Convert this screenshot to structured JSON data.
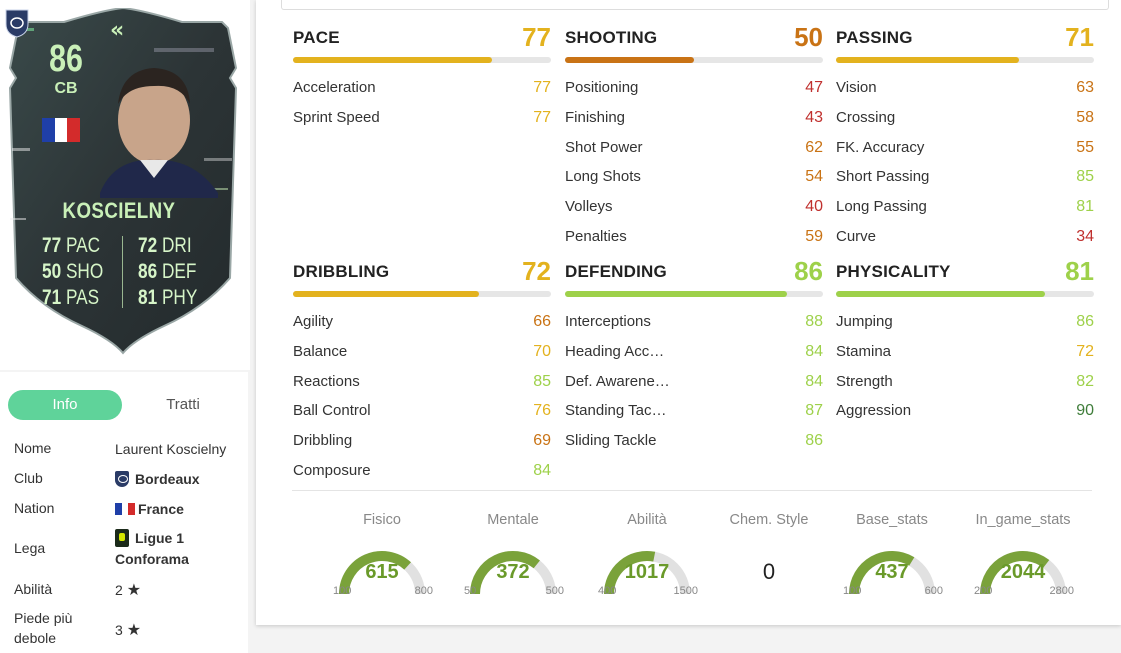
{
  "colors": {
    "gold": "#e3b21e",
    "gold_dark": "#c9851a",
    "orange": "#c97315",
    "red": "#c0302e",
    "light_green": "#9ed14a",
    "green": "#7bbf2e",
    "dark_green": "#3f7d3a",
    "tab_active": "#5fd39a",
    "gauge_green": "#7aa23a"
  },
  "card": {
    "rating": "86",
    "position": "CB",
    "name": "KOSCIELNY",
    "flag_icon": "france-flag-icon",
    "club_icon": "bordeaux-crest-icon",
    "stats_left": [
      {
        "value": "77",
        "label": "PAC"
      },
      {
        "value": "50",
        "label": "SHO"
      },
      {
        "value": "71",
        "label": "PAS"
      }
    ],
    "stats_right": [
      {
        "value": "72",
        "label": "DRI"
      },
      {
        "value": "86",
        "label": "DEF"
      },
      {
        "value": "81",
        "label": "PHY"
      }
    ]
  },
  "info": {
    "tabs": [
      {
        "label": "Info",
        "active": true
      },
      {
        "label": "Tratti",
        "active": false
      }
    ],
    "rows": [
      {
        "key": "Nome",
        "value": "Laurent Koscielny"
      },
      {
        "key": "Club",
        "value": "Bordeaux",
        "icon": "bordeaux-crest-icon"
      },
      {
        "key": "Nation",
        "value": "France",
        "icon": "france-flag-icon"
      },
      {
        "key": "Lega",
        "value": "Ligue 1 Conforama",
        "icon": "ligue1-icon"
      },
      {
        "key": "Abilità",
        "value": "2",
        "icon": "star-icon"
      },
      {
        "key": "Piede più debole",
        "value": "3",
        "icon": "star-icon"
      }
    ]
  },
  "groups": [
    {
      "title": "PACE",
      "total": 77,
      "attrs": [
        {
          "name": "Acceleration",
          "value": 77
        },
        {
          "name": "Sprint Speed",
          "value": 77
        }
      ]
    },
    {
      "title": "SHOOTING",
      "total": 50,
      "attrs": [
        {
          "name": "Positioning",
          "value": 47
        },
        {
          "name": "Finishing",
          "value": 43
        },
        {
          "name": "Shot Power",
          "value": 62
        },
        {
          "name": "Long Shots",
          "value": 54
        },
        {
          "name": "Volleys",
          "value": 40
        },
        {
          "name": "Penalties",
          "value": 59
        }
      ]
    },
    {
      "title": "PASSING",
      "total": 71,
      "attrs": [
        {
          "name": "Vision",
          "value": 63
        },
        {
          "name": "Crossing",
          "value": 58
        },
        {
          "name": "FK. Accuracy",
          "value": 55
        },
        {
          "name": "Short Passing",
          "value": 85
        },
        {
          "name": "Long Passing",
          "value": 81
        },
        {
          "name": "Curve",
          "value": 34
        }
      ]
    },
    {
      "title": "DRIBBLING",
      "total": 72,
      "attrs": [
        {
          "name": "Agility",
          "value": 66
        },
        {
          "name": "Balance",
          "value": 70
        },
        {
          "name": "Reactions",
          "value": 85
        },
        {
          "name": "Ball Control",
          "value": 76
        },
        {
          "name": "Dribbling",
          "value": 69
        },
        {
          "name": "Composure",
          "value": 84
        }
      ]
    },
    {
      "title": "DEFENDING",
      "total": 86,
      "attrs": [
        {
          "name": "Interceptions",
          "value": 88
        },
        {
          "name": "Heading Acc…",
          "value": 84
        },
        {
          "name": "Def. Awarene…",
          "value": 84
        },
        {
          "name": "Standing Tac…",
          "value": 87
        },
        {
          "name": "Sliding Tackle",
          "value": 86
        }
      ]
    },
    {
      "title": "PHYSICALITY",
      "total": 81,
      "attrs": [
        {
          "name": "Jumping",
          "value": 86
        },
        {
          "name": "Stamina",
          "value": 72
        },
        {
          "name": "Strength",
          "value": 82
        },
        {
          "name": "Aggression",
          "value": 90
        }
      ]
    }
  ],
  "gauges": [
    {
      "label": "Fisico",
      "value": 615,
      "min": 100,
      "max": 800
    },
    {
      "label": "Mentale",
      "value": 372,
      "min": 50,
      "max": 500
    },
    {
      "label": "Abilità",
      "value": 1017,
      "min": 400,
      "max": 1500
    },
    {
      "label": "Chem. Style",
      "value": "0"
    },
    {
      "label": "Base_stats",
      "value": 437,
      "min": 100,
      "max": 600
    },
    {
      "label": "In_game_stats",
      "value": 2044,
      "min": 200,
      "max": 2800
    }
  ]
}
